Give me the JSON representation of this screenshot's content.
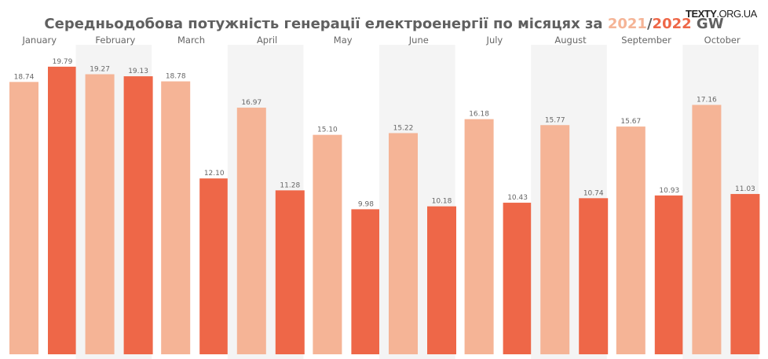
{
  "logo": {
    "bold": "TEXTY",
    "rest": ".ORG.UA"
  },
  "chart_data": {
    "type": "bar",
    "title": {
      "prefix": "Середньодобова потужність генерації електроенергії по місяцях за ",
      "year1": "2021",
      "sep": "/",
      "year2": "2022",
      "suffix": " GW"
    },
    "categories": [
      "January",
      "February",
      "March",
      "April",
      "May",
      "June",
      "July",
      "August",
      "September",
      "October"
    ],
    "series": [
      {
        "name": "2021",
        "color": "#f5b496",
        "values": [
          18.74,
          19.27,
          18.78,
          16.97,
          15.1,
          15.22,
          16.18,
          15.77,
          15.67,
          17.16
        ]
      },
      {
        "name": "2022",
        "color": "#ee6748",
        "values": [
          19.79,
          19.13,
          12.1,
          11.28,
          9.98,
          10.18,
          10.43,
          10.74,
          10.93,
          11.03
        ]
      }
    ],
    "ylim": [
      0,
      21
    ],
    "grid": false,
    "label_color": "#666666",
    "panel_shade": "#f4f4f4"
  }
}
